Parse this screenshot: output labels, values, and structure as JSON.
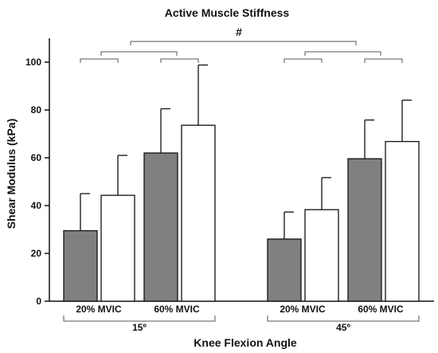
{
  "chart_data": {
    "type": "bar",
    "title": "Active Muscle Stiffness",
    "xlabel": "Knee Flexion Angle",
    "ylabel": "Shear Modulus (kPa)",
    "ylim": [
      0,
      110
    ],
    "yticks": [
      0,
      20,
      40,
      60,
      80,
      100
    ],
    "groups": [
      {
        "label": "15º",
        "subgroups": [
          "20% MVIC",
          "60% MVIC"
        ]
      },
      {
        "label": "45º",
        "subgroups": [
          "20% MVIC",
          "60% MVIC"
        ]
      }
    ],
    "bar_colors": {
      "filled": "#808080",
      "open": "#ffffff"
    },
    "bars": [
      {
        "group": 0,
        "subgroup": 0,
        "fill": "filled",
        "value": 29.5,
        "error": 15.5
      },
      {
        "group": 0,
        "subgroup": 0,
        "fill": "open",
        "value": 44.3,
        "error": 16.7
      },
      {
        "group": 0,
        "subgroup": 1,
        "fill": "filled",
        "value": 62.0,
        "error": 18.5
      },
      {
        "group": 0,
        "subgroup": 1,
        "fill": "open",
        "value": 73.6,
        "error": 25.2
      },
      {
        "group": 1,
        "subgroup": 0,
        "fill": "filled",
        "value": 26.0,
        "error": 11.3
      },
      {
        "group": 1,
        "subgroup": 0,
        "fill": "open",
        "value": 38.3,
        "error": 13.4
      },
      {
        "group": 1,
        "subgroup": 1,
        "fill": "filled",
        "value": 59.6,
        "error": 16.2
      },
      {
        "group": 1,
        "subgroup": 1,
        "fill": "open",
        "value": 66.8,
        "error": 17.3
      }
    ],
    "significance_label": "#"
  }
}
